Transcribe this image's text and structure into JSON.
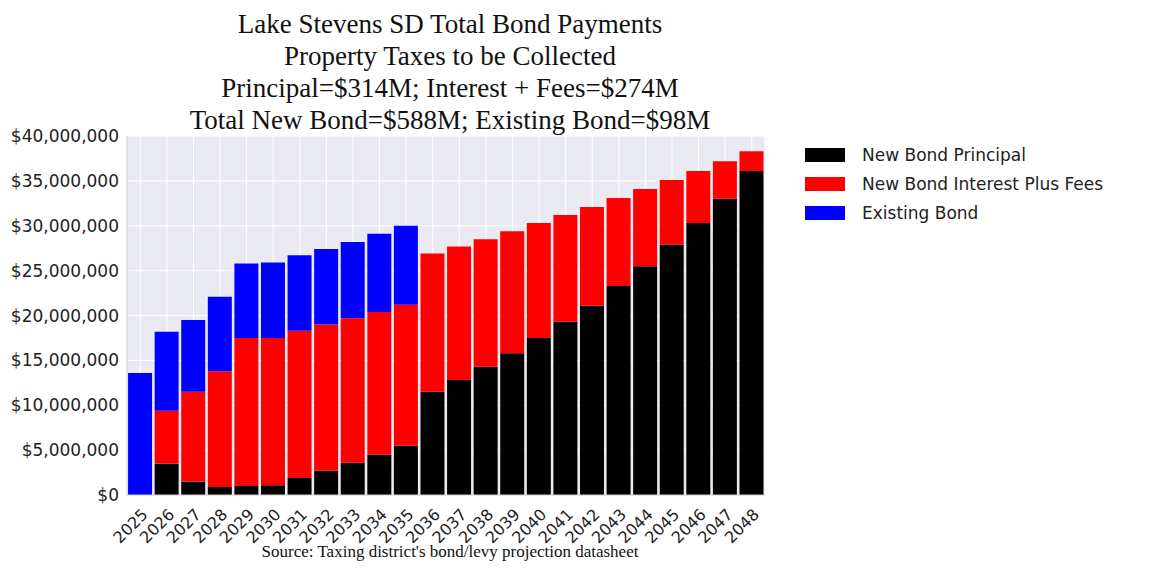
{
  "chart_data": {
    "type": "bar",
    "title": "Lake Stevens SD Total Bond Payments",
    "subtitle": [
      "Property Taxes to be Collected",
      "Principal=$314M; Interest + Fees=$274M",
      "Total New Bond=$588M; Existing Bond=$98M"
    ],
    "xlabel": "Source: Taxing district's bond/levy projection datasheet",
    "categories": [
      "2025",
      "2026",
      "2027",
      "2028",
      "2029",
      "2030",
      "2031",
      "2032",
      "2033",
      "2034",
      "2035",
      "2036",
      "2037",
      "2038",
      "2039",
      "2040",
      "2041",
      "2042",
      "2043",
      "2044",
      "2045",
      "2046",
      "2047",
      "2048"
    ],
    "series": [
      {
        "name": "New Bond Principal",
        "color": "#000000",
        "values": [
          0,
          3500000,
          1500000,
          900000,
          1000000,
          1100000,
          1900000,
          2700000,
          3600000,
          4500000,
          5500000,
          11500000,
          12800000,
          14300000,
          15800000,
          17500000,
          19300000,
          21100000,
          23300000,
          25500000,
          27900000,
          30300000,
          33000000,
          36100000
        ]
      },
      {
        "name": "New Bond Interest Plus Fees",
        "color": "#ff0000",
        "values": [
          0,
          5900000,
          10000000,
          12900000,
          16500000,
          16400000,
          16400000,
          16300000,
          16100000,
          15900000,
          15700000,
          15400000,
          14900000,
          14200000,
          13600000,
          12800000,
          11900000,
          11000000,
          9800000,
          8600000,
          7200000,
          5800000,
          4200000,
          2200000
        ]
      },
      {
        "name": "Existing Bond",
        "color": "#0000ff",
        "values": [
          13600000,
          8800000,
          8000000,
          8300000,
          8300000,
          8400000,
          8400000,
          8400000,
          8500000,
          8700000,
          8800000,
          0,
          0,
          0,
          0,
          0,
          0,
          0,
          0,
          0,
          0,
          0,
          0,
          0
        ]
      }
    ],
    "ylim": [
      0,
      40000000
    ],
    "yticks": [
      {
        "value": 0,
        "label": "$0"
      },
      {
        "value": 5000000,
        "label": "$5,000,000"
      },
      {
        "value": 10000000,
        "label": "$10,000,000"
      },
      {
        "value": 15000000,
        "label": "$15,000,000"
      },
      {
        "value": 20000000,
        "label": "$20,000,000"
      },
      {
        "value": 25000000,
        "label": "$25,000,000"
      },
      {
        "value": 30000000,
        "label": "$30,000,000"
      },
      {
        "value": 35000000,
        "label": "$35,000,000"
      },
      {
        "value": 40000000,
        "label": "$40,000,000"
      }
    ],
    "stacked": true,
    "grid": true,
    "legend": "upper right"
  }
}
